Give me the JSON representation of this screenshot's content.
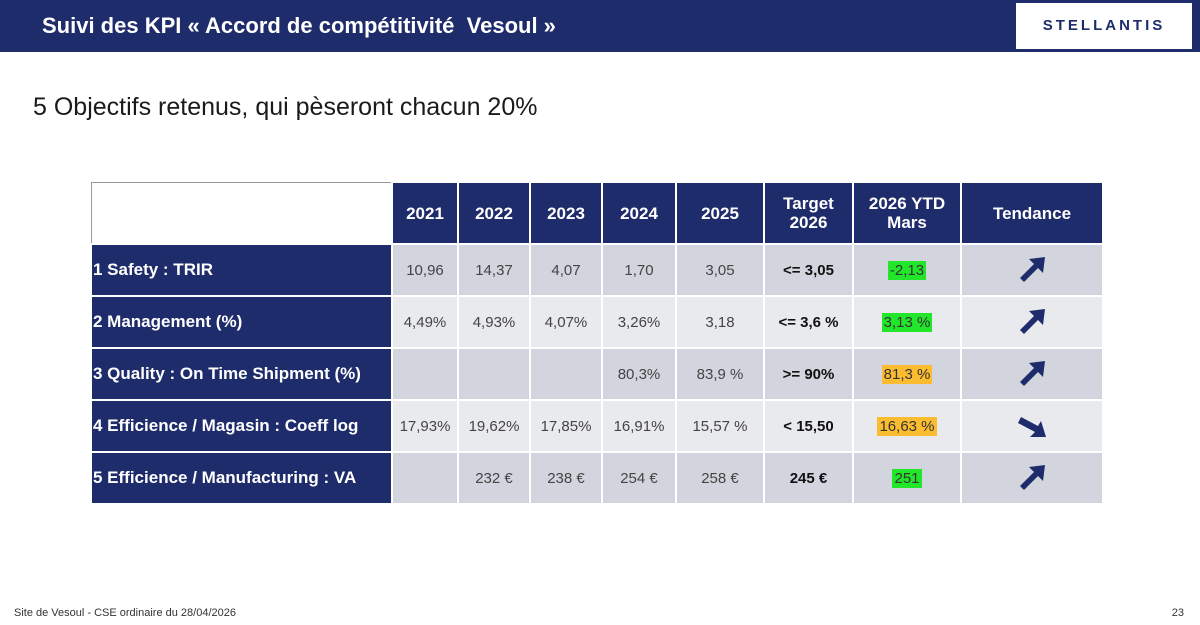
{
  "header": {
    "title": "Suivi des KPI « Accord de compétitivité  Vesoul »",
    "logo_text": "STELLANTIS"
  },
  "subtitle": "5 Objectifs retenus, qui pèseront chacun 20%",
  "table": {
    "columns": [
      "2021",
      "2022",
      "2023",
      "2024",
      "2025",
      "Target 2026",
      "2026 YTD Mars",
      "Tendance"
    ],
    "rows": [
      {
        "label": "1 Safety : TRIR",
        "values": [
          "10,96",
          "14,37",
          "4,07",
          "1,70",
          "3,05"
        ],
        "target": "<= 3,05",
        "ytd": "-2,13",
        "ytd_color": "#22e62a",
        "trend": "up-arrow"
      },
      {
        "label": "2 Management (%)",
        "values": [
          "4,49%",
          "4,93%",
          "4,07%",
          "3,26%",
          "3,18"
        ],
        "target": "<= 3,6 %",
        "ytd": "3,13 %",
        "ytd_color": "#22e62a",
        "trend": "up-arrow"
      },
      {
        "label": "3 Quality : On Time Shipment (%)",
        "values": [
          "",
          "",
          "",
          "80,3%",
          "83,9 %"
        ],
        "target": ">= 90%",
        "ytd": "81,3 %",
        "ytd_color": "#fbbd2f",
        "trend": "up-arrow"
      },
      {
        "label": "4 Efficience / Magasin : Coeff log",
        "values": [
          "17,93%",
          "19,62%",
          "17,85%",
          "16,91%",
          "15,57 %"
        ],
        "target": "< 15,50",
        "ytd": "16,63 %",
        "ytd_color": "#fbbd2f",
        "trend": "down-arrow"
      },
      {
        "label": "5 Efficience / Manufacturing : VA",
        "values": [
          "",
          "232 €",
          "238 €",
          "254 €",
          "258 €"
        ],
        "target": "245 €",
        "ytd": "251",
        "ytd_color": "#22e62a",
        "trend": "up-arrow"
      }
    ]
  },
  "footer": {
    "text": "Site de Vesoul - CSE ordinaire du 28/04/2026",
    "page": "23"
  }
}
